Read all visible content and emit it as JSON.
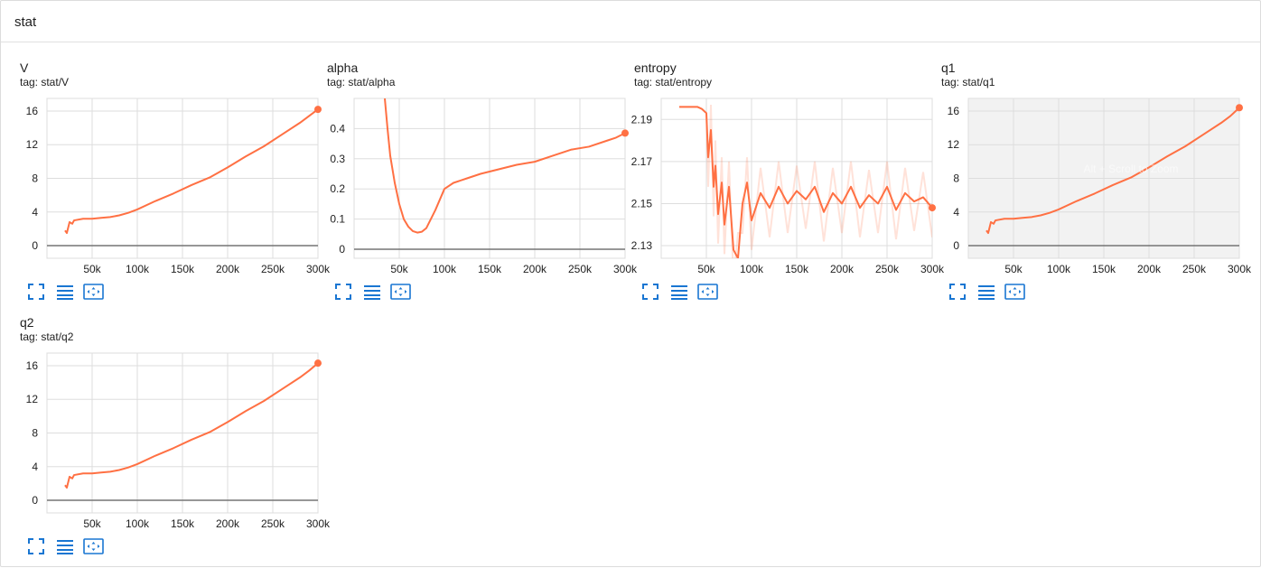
{
  "section": {
    "title": "stat"
  },
  "colors": {
    "series": "#ff7043",
    "grid": "#dddddd",
    "axis": "#757575",
    "icon": "#1976d2",
    "highlight_bg": "#f2f2f2"
  },
  "cards": [
    {
      "title": "V",
      "tag": "tag: stat/V"
    },
    {
      "title": "alpha",
      "tag": "tag: stat/alpha"
    },
    {
      "title": "entropy",
      "tag": "tag: stat/entropy"
    },
    {
      "title": "q1",
      "tag": "tag: stat/q1",
      "overlay_text": "Alt + Scroll to Zoom"
    },
    {
      "title": "q2",
      "tag": "tag: stat/q2"
    }
  ],
  "toolbar_icons": [
    "fullscreen-icon",
    "toggle-y-axis-log-icon",
    "fit-domain-icon"
  ],
  "chart_data": [
    {
      "type": "line",
      "title": "V",
      "xlabel": "",
      "ylabel": "",
      "xlim": [
        0,
        300000
      ],
      "ylim": [
        -1.5,
        17.5
      ],
      "xticks": [
        "50k",
        "100k",
        "150k",
        "200k",
        "250k",
        "300k"
      ],
      "yticks": [
        "0",
        "4",
        "8",
        "12",
        "16"
      ],
      "x": [
        20000,
        22000,
        25000,
        28000,
        30000,
        40000,
        50000,
        60000,
        70000,
        80000,
        90000,
        100000,
        120000,
        140000,
        160000,
        180000,
        200000,
        220000,
        240000,
        260000,
        280000,
        290000,
        300000
      ],
      "y": [
        1.8,
        1.5,
        2.8,
        2.6,
        3.0,
        3.2,
        3.2,
        3.3,
        3.4,
        3.6,
        3.9,
        4.3,
        5.3,
        6.2,
        7.2,
        8.1,
        9.3,
        10.6,
        11.8,
        13.2,
        14.6,
        15.4,
        16.2
      ],
      "grid": true
    },
    {
      "type": "line",
      "title": "alpha",
      "xlabel": "",
      "ylabel": "",
      "xlim": [
        0,
        300000
      ],
      "ylim": [
        -0.03,
        0.5
      ],
      "xticks": [
        "50k",
        "100k",
        "150k",
        "200k",
        "250k",
        "300k"
      ],
      "yticks": [
        "0",
        "0.1",
        "0.2",
        "0.3",
        "0.4"
      ],
      "x": [
        34000,
        37000,
        40000,
        45000,
        50000,
        55000,
        60000,
        65000,
        70000,
        75000,
        80000,
        90000,
        100000,
        110000,
        125000,
        140000,
        160000,
        180000,
        200000,
        220000,
        240000,
        260000,
        280000,
        290000,
        300000
      ],
      "y": [
        0.5,
        0.4,
        0.31,
        0.22,
        0.15,
        0.1,
        0.075,
        0.06,
        0.055,
        0.058,
        0.07,
        0.13,
        0.2,
        0.22,
        0.235,
        0.25,
        0.265,
        0.28,
        0.29,
        0.31,
        0.33,
        0.34,
        0.36,
        0.37,
        0.385
      ],
      "grid": true
    },
    {
      "type": "line",
      "title": "entropy",
      "xlabel": "",
      "ylabel": "",
      "xlim": [
        0,
        300000
      ],
      "ylim": [
        2.124,
        2.2
      ],
      "xticks": [
        "50k",
        "100k",
        "150k",
        "200k",
        "250k",
        "300k"
      ],
      "yticks": [
        "2.13",
        "2.15",
        "2.17",
        "2.19"
      ],
      "x": [
        20000,
        30000,
        40000,
        45000,
        50000,
        52000,
        55000,
        58000,
        60000,
        63000,
        67000,
        70000,
        75000,
        80000,
        85000,
        90000,
        95000,
        100000,
        110000,
        120000,
        130000,
        140000,
        150000,
        160000,
        170000,
        180000,
        190000,
        200000,
        210000,
        220000,
        230000,
        240000,
        250000,
        260000,
        270000,
        280000,
        290000,
        300000
      ],
      "y": [
        2.196,
        2.196,
        2.196,
        2.195,
        2.193,
        2.172,
        2.185,
        2.158,
        2.168,
        2.145,
        2.16,
        2.14,
        2.158,
        2.128,
        2.124,
        2.15,
        2.16,
        2.142,
        2.155,
        2.148,
        2.158,
        2.15,
        2.156,
        2.152,
        2.158,
        2.146,
        2.155,
        2.15,
        2.158,
        2.148,
        2.154,
        2.15,
        2.158,
        2.147,
        2.155,
        2.151,
        2.153,
        2.148
      ],
      "grid": true
    },
    {
      "type": "line",
      "title": "q1",
      "xlabel": "",
      "ylabel": "",
      "xlim": [
        0,
        300000
      ],
      "ylim": [
        -1.5,
        17.5
      ],
      "xticks": [
        "50k",
        "100k",
        "150k",
        "200k",
        "250k",
        "300k"
      ],
      "yticks": [
        "0",
        "4",
        "8",
        "12",
        "16"
      ],
      "x": [
        20000,
        22000,
        25000,
        28000,
        30000,
        40000,
        50000,
        60000,
        70000,
        80000,
        90000,
        100000,
        120000,
        140000,
        160000,
        180000,
        200000,
        220000,
        240000,
        260000,
        280000,
        290000,
        300000
      ],
      "y": [
        1.8,
        1.5,
        2.8,
        2.6,
        3.0,
        3.2,
        3.2,
        3.3,
        3.4,
        3.6,
        3.9,
        4.3,
        5.3,
        6.2,
        7.2,
        8.1,
        9.3,
        10.6,
        11.8,
        13.2,
        14.6,
        15.4,
        16.4
      ],
      "grid": true
    },
    {
      "type": "line",
      "title": "q2",
      "xlabel": "",
      "ylabel": "",
      "xlim": [
        0,
        300000
      ],
      "ylim": [
        -1.5,
        17.5
      ],
      "xticks": [
        "50k",
        "100k",
        "150k",
        "200k",
        "250k",
        "300k"
      ],
      "yticks": [
        "0",
        "4",
        "8",
        "12",
        "16"
      ],
      "x": [
        20000,
        22000,
        25000,
        28000,
        30000,
        40000,
        50000,
        60000,
        70000,
        80000,
        90000,
        100000,
        120000,
        140000,
        160000,
        180000,
        200000,
        220000,
        240000,
        260000,
        280000,
        290000,
        300000
      ],
      "y": [
        1.8,
        1.5,
        2.8,
        2.6,
        3.0,
        3.2,
        3.2,
        3.3,
        3.4,
        3.6,
        3.9,
        4.3,
        5.3,
        6.2,
        7.2,
        8.1,
        9.3,
        10.6,
        11.8,
        13.2,
        14.6,
        15.4,
        16.3
      ],
      "grid": true
    }
  ]
}
